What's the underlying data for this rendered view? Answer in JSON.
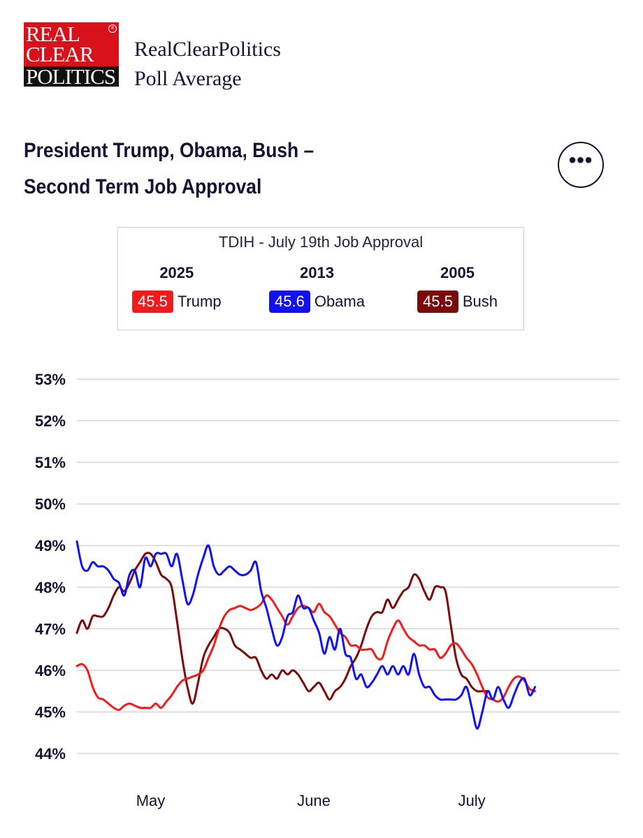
{
  "header": {
    "logo_words": [
      "REAL",
      "CLEAR",
      "POLITICS"
    ],
    "logo_tm": "®",
    "brand_line1": "RealClearPolitics",
    "brand_line2": "Poll Average"
  },
  "chart_title_line1": "President Trump, Obama, Bush –",
  "chart_title_line2": "Second Term Job Approval",
  "more_button": {
    "icon": "more-horizontal-icon",
    "label": "•••"
  },
  "legend": {
    "title": "TDIH - July 19th Job Approval",
    "entries": [
      {
        "year": "2025",
        "value": "45.5",
        "name": "Trump",
        "color": "#f21a1a"
      },
      {
        "year": "2013",
        "value": "45.6",
        "name": "Obama",
        "color": "#1010f0"
      },
      {
        "year": "2005",
        "value": "45.5",
        "name": "Bush",
        "color": "#7a0a0a"
      }
    ]
  },
  "chart_data": {
    "type": "line",
    "title": "President Trump, Obama, Bush – Second Term Job Approval",
    "ylim": [
      44,
      53
    ],
    "yticks": [
      "53%",
      "52%",
      "51%",
      "50%",
      "49%",
      "48%",
      "47%",
      "46%",
      "45%",
      "44%"
    ],
    "ytick_values": [
      53,
      52,
      51,
      50,
      49,
      48,
      47,
      46,
      45,
      44
    ],
    "x_labels": [
      "May",
      "June",
      "July"
    ],
    "x_label_days": [
      14,
      45,
      75
    ],
    "x_range": [
      0,
      103
    ],
    "grid": true,
    "series": [
      {
        "name": "Trump",
        "color": "#f21a1a",
        "points": [
          [
            0,
            46.1
          ],
          [
            1,
            46.15
          ],
          [
            2,
            46.0
          ],
          [
            3,
            45.6
          ],
          [
            4,
            45.35
          ],
          [
            5,
            45.3
          ],
          [
            6,
            45.2
          ],
          [
            7,
            45.1
          ],
          [
            8,
            45.05
          ],
          [
            9,
            45.15
          ],
          [
            10,
            45.2
          ],
          [
            11,
            45.15
          ],
          [
            12,
            45.1
          ],
          [
            13,
            45.1
          ],
          [
            14,
            45.1
          ],
          [
            15,
            45.2
          ],
          [
            16,
            45.1
          ],
          [
            17,
            45.25
          ],
          [
            18,
            45.4
          ],
          [
            19,
            45.6
          ],
          [
            20,
            45.75
          ],
          [
            21,
            45.8
          ],
          [
            22,
            45.85
          ],
          [
            23,
            45.9
          ],
          [
            24,
            46.0
          ],
          [
            25,
            46.3
          ],
          [
            26,
            46.6
          ],
          [
            27,
            47.0
          ],
          [
            28,
            47.3
          ],
          [
            29,
            47.45
          ],
          [
            30,
            47.5
          ],
          [
            31,
            47.55
          ],
          [
            32,
            47.5
          ],
          [
            33,
            47.45
          ],
          [
            34,
            47.5
          ],
          [
            35,
            47.6
          ],
          [
            36,
            47.8
          ],
          [
            37,
            47.7
          ],
          [
            38,
            47.5
          ],
          [
            39,
            47.3
          ],
          [
            40,
            47.1
          ],
          [
            41,
            47.3
          ],
          [
            42,
            47.5
          ],
          [
            43,
            47.55
          ],
          [
            44,
            47.5
          ],
          [
            45,
            47.4
          ],
          [
            46,
            47.6
          ],
          [
            47,
            47.4
          ],
          [
            48,
            47.3
          ],
          [
            49,
            47.1
          ],
          [
            50,
            46.9
          ],
          [
            51,
            46.8
          ],
          [
            52,
            46.6
          ],
          [
            53,
            46.6
          ],
          [
            54,
            46.5
          ],
          [
            55,
            46.5
          ],
          [
            56,
            46.5
          ],
          [
            57,
            46.3
          ],
          [
            58,
            46.3
          ],
          [
            59,
            46.7
          ],
          [
            60,
            47.0
          ],
          [
            61,
            47.2
          ],
          [
            62,
            47.0
          ],
          [
            63,
            46.8
          ],
          [
            64,
            46.7
          ],
          [
            65,
            46.6
          ],
          [
            66,
            46.6
          ],
          [
            67,
            46.5
          ],
          [
            68,
            46.5
          ],
          [
            69,
            46.3
          ],
          [
            70,
            46.4
          ],
          [
            71,
            46.6
          ],
          [
            72,
            46.65
          ],
          [
            73,
            46.5
          ],
          [
            74,
            46.3
          ],
          [
            75,
            46.15
          ],
          [
            76,
            45.9
          ],
          [
            77,
            45.6
          ],
          [
            78,
            45.35
          ],
          [
            79,
            45.3
          ],
          [
            80,
            45.25
          ],
          [
            81,
            45.35
          ],
          [
            82,
            45.6
          ],
          [
            83,
            45.8
          ],
          [
            84,
            45.85
          ],
          [
            85,
            45.75
          ],
          [
            86,
            45.55
          ],
          [
            87,
            45.5
          ]
        ]
      },
      {
        "name": "Obama",
        "color": "#1010f0",
        "points": [
          [
            0,
            49.1
          ],
          [
            1,
            48.5
          ],
          [
            2,
            48.4
          ],
          [
            3,
            48.6
          ],
          [
            4,
            48.5
          ],
          [
            5,
            48.5
          ],
          [
            6,
            48.4
          ],
          [
            7,
            48.2
          ],
          [
            8,
            48.1
          ],
          [
            9,
            47.8
          ],
          [
            10,
            48.3
          ],
          [
            11,
            48.4
          ],
          [
            12,
            48.0
          ],
          [
            13,
            48.7
          ],
          [
            14,
            48.5
          ],
          [
            15,
            48.8
          ],
          [
            16,
            48.8
          ],
          [
            17,
            48.8
          ],
          [
            18,
            48.5
          ],
          [
            19,
            48.8
          ],
          [
            20,
            48.2
          ],
          [
            21,
            47.6
          ],
          [
            22,
            47.8
          ],
          [
            23,
            48.3
          ],
          [
            24,
            48.7
          ],
          [
            25,
            49.0
          ],
          [
            26,
            48.5
          ],
          [
            27,
            48.3
          ],
          [
            28,
            48.4
          ],
          [
            29,
            48.5
          ],
          [
            30,
            48.4
          ],
          [
            31,
            48.3
          ],
          [
            32,
            48.3
          ],
          [
            33,
            48.4
          ],
          [
            34,
            48.6
          ],
          [
            35,
            47.9
          ],
          [
            36,
            47.5
          ],
          [
            37,
            47.0
          ],
          [
            38,
            46.6
          ],
          [
            39,
            46.8
          ],
          [
            40,
            47.3
          ],
          [
            41,
            47.4
          ],
          [
            42,
            47.8
          ],
          [
            43,
            47.5
          ],
          [
            44,
            47.5
          ],
          [
            45,
            47.2
          ],
          [
            46,
            46.9
          ],
          [
            47,
            46.4
          ],
          [
            48,
            46.8
          ],
          [
            49,
            46.5
          ],
          [
            50,
            47.0
          ],
          [
            51,
            46.4
          ],
          [
            52,
            46.3
          ],
          [
            53,
            45.8
          ],
          [
            54,
            45.9
          ],
          [
            55,
            45.6
          ],
          [
            56,
            45.7
          ],
          [
            57,
            45.9
          ],
          [
            58,
            46.1
          ],
          [
            59,
            45.9
          ],
          [
            60,
            46.1
          ],
          [
            61,
            45.9
          ],
          [
            62,
            46.1
          ],
          [
            63,
            45.9
          ],
          [
            64,
            46.4
          ],
          [
            65,
            45.9
          ],
          [
            66,
            45.6
          ],
          [
            67,
            45.6
          ],
          [
            68,
            45.4
          ],
          [
            69,
            45.3
          ],
          [
            70,
            45.3
          ],
          [
            71,
            45.3
          ],
          [
            72,
            45.3
          ],
          [
            73,
            45.4
          ],
          [
            74,
            45.6
          ],
          [
            75,
            45.1
          ],
          [
            76,
            44.6
          ],
          [
            77,
            45.0
          ],
          [
            78,
            45.5
          ],
          [
            79,
            45.3
          ],
          [
            80,
            45.6
          ],
          [
            81,
            45.3
          ],
          [
            82,
            45.1
          ],
          [
            83,
            45.4
          ],
          [
            84,
            45.7
          ],
          [
            85,
            45.8
          ],
          [
            86,
            45.4
          ],
          [
            87,
            45.6
          ]
        ]
      },
      {
        "name": "Bush",
        "color": "#7a0a0a",
        "points": [
          [
            0,
            46.9
          ],
          [
            1,
            47.2
          ],
          [
            2,
            47.0
          ],
          [
            3,
            47.3
          ],
          [
            4,
            47.3
          ],
          [
            5,
            47.3
          ],
          [
            6,
            47.5
          ],
          [
            7,
            47.8
          ],
          [
            8,
            48.0
          ],
          [
            9,
            47.9
          ],
          [
            10,
            48.1
          ],
          [
            11,
            48.4
          ],
          [
            12,
            48.6
          ],
          [
            13,
            48.8
          ],
          [
            14,
            48.8
          ],
          [
            15,
            48.6
          ],
          [
            16,
            48.3
          ],
          [
            17,
            48.2
          ],
          [
            18,
            48.0
          ],
          [
            19,
            47.2
          ],
          [
            20,
            46.3
          ],
          [
            21,
            45.6
          ],
          [
            22,
            45.2
          ],
          [
            23,
            45.7
          ],
          [
            24,
            46.3
          ],
          [
            25,
            46.6
          ],
          [
            26,
            46.8
          ],
          [
            27,
            47.0
          ],
          [
            28,
            47.0
          ],
          [
            29,
            46.9
          ],
          [
            30,
            46.6
          ],
          [
            31,
            46.5
          ],
          [
            32,
            46.4
          ],
          [
            33,
            46.3
          ],
          [
            34,
            46.3
          ],
          [
            35,
            46.0
          ],
          [
            36,
            45.8
          ],
          [
            37,
            45.9
          ],
          [
            38,
            45.8
          ],
          [
            39,
            46.0
          ],
          [
            40,
            45.9
          ],
          [
            41,
            46.0
          ],
          [
            42,
            45.9
          ],
          [
            43,
            45.7
          ],
          [
            44,
            45.5
          ],
          [
            45,
            45.6
          ],
          [
            46,
            45.7
          ],
          [
            47,
            45.5
          ],
          [
            48,
            45.3
          ],
          [
            49,
            45.5
          ],
          [
            50,
            45.6
          ],
          [
            51,
            45.8
          ],
          [
            52,
            46.1
          ],
          [
            53,
            46.3
          ],
          [
            54,
            46.6
          ],
          [
            55,
            47.0
          ],
          [
            56,
            47.3
          ],
          [
            57,
            47.4
          ],
          [
            58,
            47.4
          ],
          [
            59,
            47.7
          ],
          [
            60,
            47.5
          ],
          [
            61,
            47.7
          ],
          [
            62,
            47.9
          ],
          [
            63,
            48.0
          ],
          [
            64,
            48.3
          ],
          [
            65,
            48.2
          ],
          [
            66,
            47.9
          ],
          [
            67,
            47.7
          ],
          [
            68,
            48.0
          ],
          [
            69,
            48.0
          ],
          [
            70,
            47.9
          ],
          [
            71,
            47.1
          ],
          [
            72,
            46.3
          ],
          [
            73,
            45.9
          ],
          [
            74,
            45.8
          ],
          [
            75,
            45.6
          ],
          [
            76,
            45.5
          ],
          [
            77,
            45.5
          ],
          [
            78,
            45.5
          ]
        ]
      }
    ]
  }
}
